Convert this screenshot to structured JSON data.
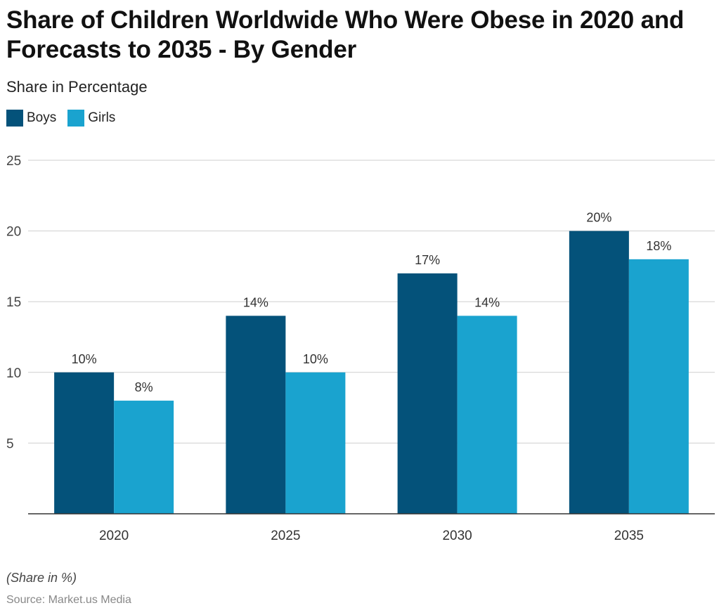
{
  "chart_data": {
    "type": "bar",
    "title": "Share of Children Worldwide Who Were Obese in 2020 and Forecasts to 2035 - By Gender",
    "subtitle": "Share in Percentage",
    "categories": [
      "2020",
      "2025",
      "2030",
      "2035"
    ],
    "series": [
      {
        "name": "Boys",
        "values": [
          10,
          14,
          17,
          20
        ],
        "color": "#04527a"
      },
      {
        "name": "Girls",
        "values": [
          8,
          10,
          14,
          18
        ],
        "color": "#1aa3cf"
      }
    ],
    "value_suffix": "%",
    "ylim": [
      0,
      25
    ],
    "yticks": [
      5,
      10,
      15,
      20,
      25
    ],
    "grid": true,
    "legend_position": "top-left",
    "footnote": "(Share in %)",
    "source": "Source: Market.us Media"
  }
}
